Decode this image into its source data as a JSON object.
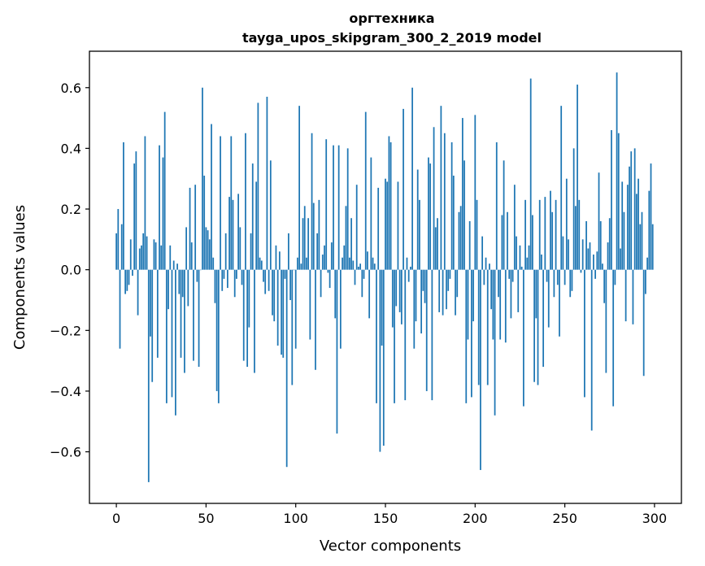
{
  "chart_data": {
    "type": "bar",
    "title": "оргтехника",
    "subtitle": "tayga_upos_skipgram_300_2_2019 model",
    "xlabel": "Vector components",
    "ylabel": "Components values",
    "xlim": [
      -15,
      315
    ],
    "ylim": [
      -0.77,
      0.72
    ],
    "xticks": [
      0,
      50,
      100,
      150,
      200,
      250,
      300
    ],
    "yticks": [
      -0.6,
      -0.4,
      -0.2,
      0.0,
      0.2,
      0.4,
      0.6
    ],
    "ytick_labels": [
      "−0.6",
      "−0.4",
      "−0.2",
      "0.0",
      "0.2",
      "0.4",
      "0.6"
    ],
    "grid": false,
    "bar_color": "#1f77b4",
    "values": [
      0.12,
      0.2,
      -0.26,
      0.15,
      0.42,
      -0.08,
      -0.07,
      -0.05,
      0.1,
      -0.02,
      0.35,
      0.39,
      -0.15,
      0.07,
      0.08,
      0.12,
      0.44,
      0.11,
      -0.7,
      -0.22,
      -0.37,
      0.1,
      0.09,
      -0.29,
      0.41,
      0.08,
      0.37,
      0.52,
      -0.44,
      -0.13,
      0.08,
      -0.42,
      0.03,
      -0.48,
      0.02,
      -0.08,
      -0.29,
      -0.09,
      -0.34,
      0.14,
      -0.12,
      0.27,
      0.09,
      -0.3,
      0.28,
      -0.04,
      -0.32,
      0.0,
      0.6,
      0.31,
      0.14,
      0.13,
      0.1,
      0.48,
      0.04,
      -0.11,
      -0.4,
      -0.44,
      0.44,
      -0.07,
      -0.03,
      0.12,
      -0.06,
      0.24,
      0.44,
      0.23,
      -0.09,
      -0.03,
      0.25,
      0.14,
      -0.05,
      -0.3,
      0.45,
      -0.32,
      -0.19,
      0.12,
      0.35,
      -0.34,
      0.29,
      0.55,
      0.04,
      0.03,
      -0.04,
      -0.08,
      0.57,
      -0.07,
      0.36,
      -0.15,
      -0.17,
      0.08,
      -0.25,
      0.06,
      -0.28,
      -0.29,
      -0.03,
      -0.65,
      0.12,
      -0.1,
      -0.38,
      0.0,
      -0.26,
      0.04,
      0.54,
      0.02,
      0.17,
      0.21,
      0.04,
      0.17,
      -0.23,
      0.45,
      0.22,
      -0.33,
      0.12,
      0.23,
      -0.09,
      0.05,
      0.08,
      0.43,
      -0.01,
      -0.06,
      0.09,
      0.41,
      -0.16,
      -0.54,
      0.41,
      -0.26,
      0.04,
      0.08,
      0.21,
      0.4,
      0.04,
      0.17,
      0.03,
      -0.05,
      0.28,
      0.01,
      0.02,
      -0.09,
      -0.03,
      0.52,
      0.06,
      -0.16,
      0.37,
      0.04,
      0.02,
      -0.44,
      0.27,
      -0.6,
      -0.25,
      -0.58,
      0.3,
      0.29,
      0.44,
      0.42,
      -0.19,
      -0.44,
      -0.12,
      0.29,
      -0.14,
      -0.18,
      0.53,
      -0.43,
      0.04,
      -0.04,
      0.01,
      0.6,
      -0.26,
      -0.17,
      0.33,
      0.23,
      -0.21,
      -0.07,
      -0.11,
      -0.4,
      0.37,
      0.35,
      -0.43,
      0.47,
      0.14,
      0.17,
      -0.14,
      0.54,
      -0.15,
      0.45,
      -0.13,
      -0.07,
      -0.03,
      0.42,
      0.31,
      -0.15,
      -0.09,
      0.19,
      0.21,
      0.5,
      0.36,
      -0.44,
      -0.23,
      0.16,
      -0.42,
      -0.17,
      0.51,
      0.23,
      -0.38,
      -0.66,
      0.11,
      -0.05,
      0.04,
      -0.38,
      0.02,
      -0.13,
      -0.23,
      -0.48,
      0.42,
      -0.09,
      -0.23,
      0.18,
      0.36,
      -0.24,
      0.19,
      -0.03,
      -0.16,
      -0.04,
      0.28,
      0.11,
      -0.14,
      0.08,
      0.01,
      -0.45,
      0.23,
      0.04,
      0.08,
      0.63,
      0.18,
      -0.37,
      -0.16,
      -0.38,
      0.23,
      0.05,
      -0.32,
      0.24,
      -0.04,
      -0.19,
      0.26,
      0.19,
      -0.09,
      0.23,
      -0.05,
      -0.22,
      0.54,
      0.11,
      -0.05,
      0.3,
      0.1,
      -0.09,
      -0.07,
      0.4,
      0.21,
      0.61,
      0.23,
      -0.01,
      0.1,
      -0.42,
      0.16,
      0.07,
      0.09,
      -0.53,
      0.05,
      -0.03,
      0.06,
      0.32,
      0.16,
      0.02,
      -0.11,
      -0.34,
      0.09,
      0.17,
      0.46,
      -0.45,
      -0.05,
      0.65,
      0.45,
      0.07,
      0.29,
      0.19,
      -0.17,
      0.28,
      0.34,
      0.39,
      -0.18,
      0.4,
      0.25,
      0.3,
      0.15,
      0.19,
      -0.35,
      -0.08,
      0.04,
      0.26,
      0.35,
      0.15
    ]
  }
}
